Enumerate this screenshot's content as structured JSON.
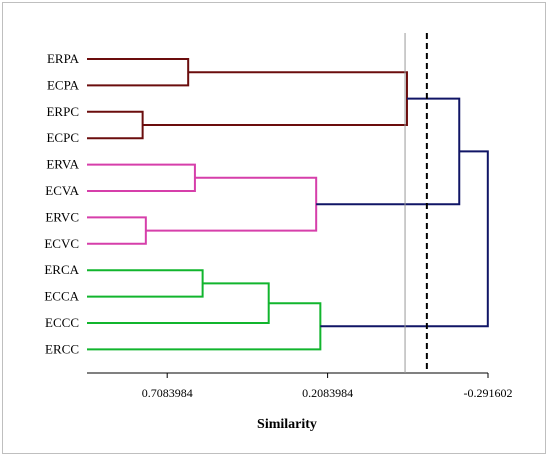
{
  "chart_data": {
    "type": "dendrogram",
    "xlabel": "Similarity",
    "xlim": [
      0.9583984,
      -0.291602
    ],
    "xticks": [
      {
        "value": 0.7083984,
        "label": "0.7083984"
      },
      {
        "value": 0.2083984,
        "label": "0.2083984"
      },
      {
        "value": -0.291602,
        "label": "-0.291602"
      }
    ],
    "leaves": [
      "ERPA",
      "ECPA",
      "ERPC",
      "ECPC",
      "ERVA",
      "ECVA",
      "ERVC",
      "ECVC",
      "ERCA",
      "ECCA",
      "ECCC",
      "ERCC"
    ],
    "merges": [
      {
        "left": "ERPA",
        "right": "ECPA",
        "height": 0.643,
        "color": "#6b0d0d"
      },
      {
        "left": "ERPC",
        "right": "ECPC",
        "height": 0.785,
        "color": "#6b0d0d"
      },
      {
        "left": 0,
        "right": 1,
        "height": -0.039,
        "color": "#6b0d0d"
      },
      {
        "left": "ERVA",
        "right": "ECVA",
        "height": 0.622,
        "color": "#d63faa"
      },
      {
        "left": "ERVC",
        "right": "ECVC",
        "height": 0.775,
        "color": "#d63faa"
      },
      {
        "left": 3,
        "right": 4,
        "height": 0.244,
        "color": "#d63faa"
      },
      {
        "left": 2,
        "right": 5,
        "height": -0.202,
        "color": "#101566"
      },
      {
        "left": "ERCA",
        "right": "ECCA",
        "height": 0.598,
        "color": "#11b52d"
      },
      {
        "left": 7,
        "right": "ECCC",
        "height": 0.392,
        "color": "#11b52d"
      },
      {
        "left": 8,
        "right": "ERCC",
        "height": 0.231,
        "color": "#11b52d"
      },
      {
        "left": 6,
        "right": 9,
        "height": -0.291,
        "color": "#101566"
      }
    ],
    "cut_lines": [
      {
        "value": -0.033,
        "style": "solid",
        "color": "#999999"
      },
      {
        "value": -0.101,
        "style": "dashed",
        "color": "#000000"
      }
    ],
    "grid": false,
    "legend": "none"
  }
}
